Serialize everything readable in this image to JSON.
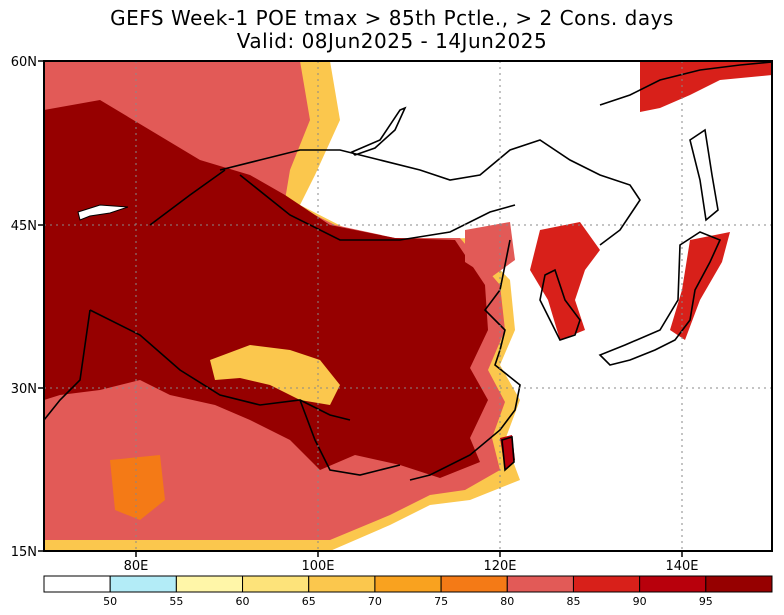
{
  "title": {
    "line1": "GEFS Week-1 POE tmax > 85th Pctle., > 2 Cons. days",
    "line2": "Valid: 08Jun2025 - 14Jun2025"
  },
  "map": {
    "lat_labels": [
      "60N",
      "45N",
      "30N",
      "15N"
    ],
    "lon_labels": [
      "80E",
      "100E",
      "120E",
      "140E"
    ],
    "extent": {
      "lon_min": 70,
      "lon_max": 150,
      "lat_min": 15,
      "lat_max": 60
    }
  },
  "legend": {
    "thresholds": [
      "50",
      "55",
      "60",
      "65",
      "70",
      "75",
      "80",
      "85",
      "90",
      "95"
    ],
    "colors": [
      "#ffffff",
      "#b3ecf7",
      "#fff6a8",
      "#fde37a",
      "#fbc74d",
      "#f9a21f",
      "#f47a16",
      "#e25a57",
      "#d8201a",
      "#b8000c",
      "#960000"
    ]
  },
  "colors": {
    "map_bg": "#ffffff",
    "max_prob": "#960000"
  }
}
